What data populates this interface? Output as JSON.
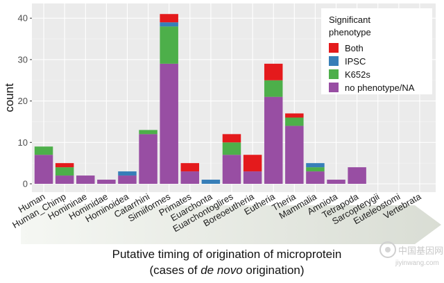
{
  "chart_data": {
    "type": "bar",
    "stacked": true,
    "ylabel": "count",
    "ylim": [
      0,
      43
    ],
    "yticks": [
      0,
      10,
      20,
      30,
      40
    ],
    "grid": true,
    "legend_position": "top-right",
    "legend_title": [
      "Significant",
      "phenotype"
    ],
    "categories": [
      "Human",
      "Human_Chimp",
      "Homininae",
      "Hominidae",
      "Hominoidea",
      "Catarrhini",
      "Simiiformes",
      "Primates",
      "Euarchonta",
      "Euarchontoglires",
      "Boreoeutheria",
      "Eutheria",
      "Theria",
      "Mammalia",
      "Amniota",
      "Tetrapoda",
      "Sarcopterygii",
      "Euteleostomi",
      "Vertebrata"
    ],
    "series": [
      {
        "name": "no phenotype/NA",
        "color": "#984ea3",
        "values": [
          7,
          2,
          2,
          1,
          2,
          12,
          29,
          3,
          0,
          7,
          3,
          21,
          14,
          3,
          1,
          4,
          0,
          0,
          0
        ]
      },
      {
        "name": "K652s",
        "color": "#4daf4a",
        "values": [
          2,
          2,
          0,
          0,
          0,
          1,
          9,
          0,
          0,
          3,
          0,
          4,
          2,
          1,
          0,
          0,
          0,
          0,
          0
        ]
      },
      {
        "name": "IPSC",
        "color": "#377eb8",
        "values": [
          0,
          0,
          0,
          0,
          1,
          0,
          1,
          0,
          1,
          0,
          0,
          0,
          0,
          1,
          0,
          0,
          0,
          0,
          0
        ]
      },
      {
        "name": "Both",
        "color": "#e41a1c",
        "values": [
          0,
          1,
          0,
          0,
          0,
          0,
          2,
          2,
          0,
          2,
          4,
          4,
          1,
          0,
          0,
          0,
          0,
          0,
          0
        ]
      }
    ],
    "legend_order": [
      "Both",
      "IPSC",
      "K652s",
      "no phenotype/NA"
    ]
  },
  "caption": {
    "line1": "Putative timing of origination of microprotein",
    "line2_prefix": "(cases of ",
    "line2_italic": "de novo",
    "line2_suffix": " origination)"
  },
  "watermark": {
    "cn": "中国基因网",
    "url": "jiyinwang.com"
  },
  "colors": {
    "panel_bg": "#ebebeb",
    "gridline": "#ffffff",
    "arrow": "#e3e7df"
  }
}
